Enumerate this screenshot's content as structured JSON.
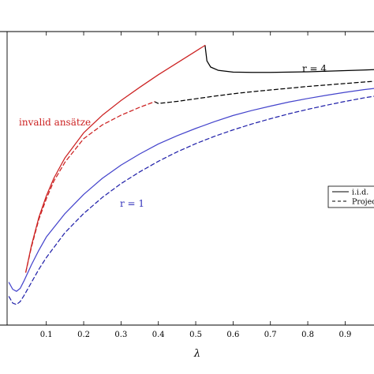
{
  "chart_data": {
    "type": "line",
    "xlabel": "λ",
    "ylabel": "",
    "xlim": [
      -0.005,
      0.99
    ],
    "ylim": [
      0,
      1
    ],
    "xticks": [
      0.1,
      0.2,
      0.3,
      0.4,
      0.5,
      0.6,
      0.7,
      0.8,
      0.9
    ],
    "xtick_labels": [
      "0.1",
      "0.2",
      "0.3",
      "0.4",
      "0.5",
      "0.6",
      "0.7",
      "0.8",
      "0.9"
    ],
    "grid": false,
    "legend": {
      "placement": "right",
      "entries": [
        {
          "label": "i.i.d.",
          "style": "solid"
        },
        {
          "label": "Projec",
          "style": "dashed"
        }
      ]
    },
    "annotations": [
      {
        "text": "invalid ansätze",
        "color": "#cc2222"
      },
      {
        "text": "r = 4",
        "color": "#000000"
      },
      {
        "text": "r = 1",
        "color": "#3333bb"
      }
    ],
    "series": [
      {
        "role": "r4-solid",
        "color": "#000000",
        "style": "solid",
        "x": [
          0.525,
          0.53,
          0.54,
          0.56,
          0.6,
          0.65,
          0.7,
          0.75,
          0.8,
          0.85,
          0.9,
          0.95,
          0.99
        ],
        "y": [
          0.953,
          0.9,
          0.879,
          0.868,
          0.862,
          0.861,
          0.861,
          0.862,
          0.863,
          0.865,
          0.867,
          0.869,
          0.871
        ]
      },
      {
        "role": "r4-dashed",
        "color": "#000000",
        "style": "dashed",
        "x": [
          0.39,
          0.4,
          0.45,
          0.5,
          0.55,
          0.6,
          0.65,
          0.7,
          0.75,
          0.8,
          0.85,
          0.9,
          0.95,
          0.99
        ],
        "y": [
          0.761,
          0.755,
          0.762,
          0.771,
          0.78,
          0.788,
          0.795,
          0.801,
          0.807,
          0.813,
          0.818,
          0.823,
          0.828,
          0.832
        ]
      },
      {
        "role": "invalid-solid",
        "color": "#cc2222",
        "style": "solid",
        "x": [
          0.045,
          0.06,
          0.08,
          0.1,
          0.12,
          0.15,
          0.2,
          0.25,
          0.3,
          0.35,
          0.4,
          0.45,
          0.5,
          0.525
        ],
        "y": [
          0.18,
          0.27,
          0.367,
          0.44,
          0.5,
          0.57,
          0.655,
          0.715,
          0.765,
          0.81,
          0.853,
          0.893,
          0.933,
          0.953
        ]
      },
      {
        "role": "invalid-dashed",
        "color": "#cc2222",
        "style": "dashed",
        "x": [
          0.045,
          0.06,
          0.08,
          0.1,
          0.12,
          0.15,
          0.2,
          0.25,
          0.3,
          0.35,
          0.39
        ],
        "y": [
          0.18,
          0.265,
          0.36,
          0.43,
          0.49,
          0.555,
          0.635,
          0.682,
          0.715,
          0.742,
          0.761
        ]
      },
      {
        "role": "r1-solid",
        "color": "#4444cc",
        "style": "solid",
        "x": [
          0.0,
          0.01,
          0.02,
          0.03,
          0.04,
          0.06,
          0.08,
          0.1,
          0.15,
          0.2,
          0.25,
          0.3,
          0.35,
          0.4,
          0.45,
          0.5,
          0.55,
          0.6,
          0.65,
          0.7,
          0.75,
          0.8,
          0.85,
          0.9,
          0.95,
          0.99
        ],
        "y": [
          0.145,
          0.122,
          0.115,
          0.125,
          0.15,
          0.205,
          0.255,
          0.3,
          0.38,
          0.445,
          0.5,
          0.545,
          0.583,
          0.617,
          0.645,
          0.67,
          0.693,
          0.714,
          0.731,
          0.746,
          0.76,
          0.772,
          0.783,
          0.793,
          0.802,
          0.808
        ]
      },
      {
        "role": "r1-dashed",
        "color": "#2222aa",
        "style": "dashed",
        "x": [
          0.0,
          0.01,
          0.02,
          0.03,
          0.04,
          0.06,
          0.08,
          0.1,
          0.15,
          0.2,
          0.25,
          0.3,
          0.35,
          0.4,
          0.45,
          0.5,
          0.55,
          0.6,
          0.65,
          0.7,
          0.75,
          0.8,
          0.85,
          0.9,
          0.95,
          0.99
        ],
        "y": [
          0.097,
          0.075,
          0.07,
          0.08,
          0.1,
          0.145,
          0.19,
          0.23,
          0.315,
          0.38,
          0.435,
          0.482,
          0.522,
          0.558,
          0.59,
          0.618,
          0.643,
          0.665,
          0.685,
          0.703,
          0.72,
          0.735,
          0.749,
          0.762,
          0.774,
          0.782
        ]
      }
    ]
  }
}
